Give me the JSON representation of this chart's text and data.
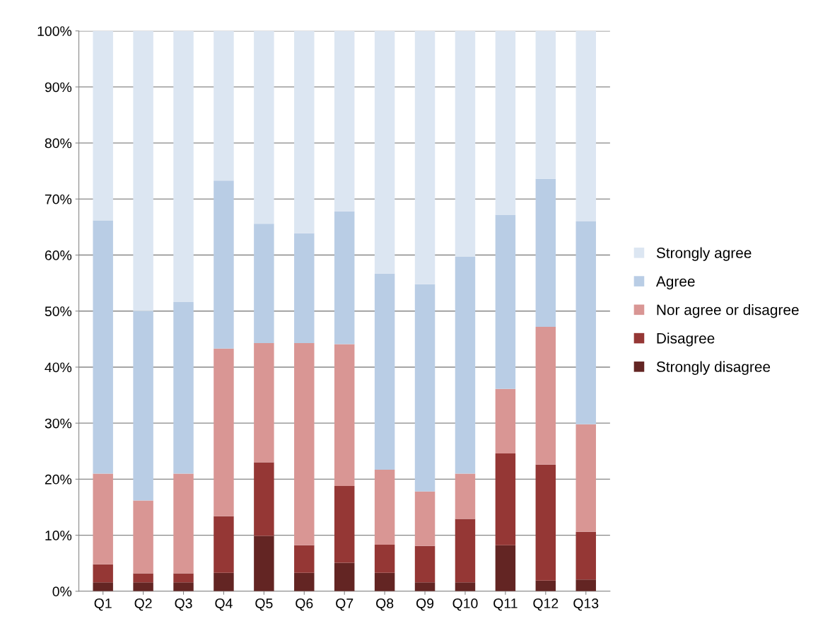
{
  "chart_data": {
    "type": "bar",
    "stacked": true,
    "categories": [
      "Q1",
      "Q2",
      "Q3",
      "Q4",
      "Q5",
      "Q6",
      "Q7",
      "Q8",
      "Q9",
      "Q10",
      "Q11",
      "Q12",
      "Q13"
    ],
    "series": [
      {
        "name": "Strongly disagree",
        "color": "#632523",
        "values": [
          1.6,
          1.6,
          1.6,
          3.3,
          9.9,
          3.3,
          5.1,
          3.3,
          1.6,
          1.6,
          8.2,
          1.9,
          2.1
        ]
      },
      {
        "name": "Disagree",
        "color": "#953735",
        "values": [
          3.2,
          1.6,
          1.6,
          10.1,
          13.1,
          4.9,
          13.7,
          5.0,
          6.5,
          11.3,
          16.4,
          20.7,
          8.5
        ]
      },
      {
        "name": "Nor agree or disagree",
        "color": "#d99694",
        "values": [
          16.2,
          13.0,
          17.8,
          29.9,
          21.3,
          36.1,
          25.3,
          13.4,
          9.7,
          8.1,
          11.5,
          24.6,
          19.2
        ]
      },
      {
        "name": "Agree",
        "color": "#b9cde5",
        "values": [
          45.2,
          33.8,
          30.6,
          30.0,
          21.3,
          19.6,
          23.7,
          35.0,
          37.0,
          38.7,
          31.1,
          26.4,
          36.2
        ]
      },
      {
        "name": "Strongly agree",
        "color": "#dce6f2",
        "values": [
          33.8,
          50.0,
          48.4,
          26.7,
          34.4,
          36.1,
          32.2,
          43.3,
          45.2,
          40.3,
          32.8,
          26.4,
          34.0
        ]
      }
    ],
    "ylim": [
      0,
      100
    ],
    "yticks": [
      {
        "value": 0,
        "label": "0%"
      },
      {
        "value": 10,
        "label": "10%"
      },
      {
        "value": 20,
        "label": "20%"
      },
      {
        "value": 30,
        "label": "30%"
      },
      {
        "value": 40,
        "label": "40%"
      },
      {
        "value": 50,
        "label": "50%"
      },
      {
        "value": 60,
        "label": "60%"
      },
      {
        "value": 70,
        "label": "70%"
      },
      {
        "value": 80,
        "label": "80%"
      },
      {
        "value": 90,
        "label": "90%"
      },
      {
        "value": 100,
        "label": "100%"
      }
    ],
    "grid": "y",
    "legend": "right"
  }
}
